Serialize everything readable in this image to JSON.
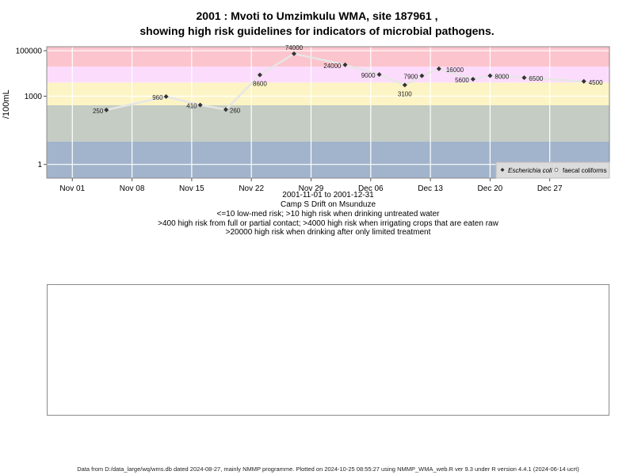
{
  "title_line1": "2001 : Mvoti to Umzimkulu WMA, site 187961 ,",
  "title_line2": "showing high risk guidelines for indicators of microbial pathogens.",
  "caption": {
    "date_range": "2001-11-01 to 2001-12-31",
    "site_name": "Camp S Drift on Msunduze",
    "rule1": "<=10 low-med risk; >10 high risk when drinking untreated water",
    "rule2": ">400 high risk from full or partial contact; >4000 high risk when irrigating crops that are eaten raw",
    "rule3": ">20000 high risk when drinking after only limited treatment"
  },
  "footer": "Data from D:/data_large/wq/wms.db dated 2024-08-27, mainly NMMP programme. Plotted on 2024-10-25 08:55:27 using NMMP_WMA_web.R ver 9.3 under R version 4.4.1 (2024-06-14 ucrt)",
  "chart_data": {
    "type": "line",
    "title": "2001 : Mvoti to Umzimkulu WMA, site 187961 , showing high risk guidelines for indicators of microbial pathogens.",
    "ylabel": "/100mL",
    "xlabel": "2001-11-01 to 2001-12-31",
    "y_scale": "log10",
    "ylim": [
      0.25,
      150000
    ],
    "y_ticks": [
      1,
      1000,
      100000
    ],
    "y_tick_labels": [
      "1",
      "1000",
      "100000"
    ],
    "x_ticks": [
      "2001-11-01",
      "2001-11-08",
      "2001-11-15",
      "2001-11-22",
      "2001-11-29",
      "2001-12-06",
      "2001-12-13",
      "2001-12-20",
      "2001-12-27"
    ],
    "x_tick_labels": [
      "Nov 01",
      "Nov 08",
      "Nov 15",
      "Nov 22",
      "Nov 29",
      "Dec 06",
      "Dec 13",
      "Dec 20",
      "Dec 27"
    ],
    "xlim": [
      "2001-10-29",
      "2002-01-03"
    ],
    "grid": true,
    "legend_position": "bottom-right",
    "risk_bands": [
      {
        "from": 0.25,
        "to": 10,
        "color": "#a2b4cc"
      },
      {
        "from": 10,
        "to": 400,
        "color": "#c4ccc4"
      },
      {
        "from": 400,
        "to": 4000,
        "color": "#fcf4c4"
      },
      {
        "from": 4000,
        "to": 20000,
        "color": "#fcdcfc"
      },
      {
        "from": 20000,
        "to": 150000,
        "color": "#fcc4cc"
      }
    ],
    "series": [
      {
        "name": "Escherichia coli",
        "marker": "diamond",
        "color": "#333333",
        "line_color": "#e6e6e6",
        "x": [
          "2001-11-05",
          "2001-11-12",
          "2001-11-16",
          "2001-11-19",
          "2001-11-23",
          "2001-11-27",
          "2001-12-03",
          "2001-12-07",
          "2001-12-10",
          "2001-12-12",
          "2001-12-14",
          "2001-12-18",
          "2001-12-20",
          "2001-12-24",
          "2001-12-31"
        ],
        "values": [
          250,
          960,
          410,
          260,
          8600,
          74000,
          24000,
          9000,
          3100,
          7900,
          16000,
          5600,
          8000,
          6500,
          4500
        ],
        "labels": [
          "250",
          "960",
          "410",
          "260",
          "8600",
          "74000",
          "24000",
          "9000",
          "3100",
          "7900",
          "16000",
          "5600",
          "8000",
          "6500",
          "4500"
        ]
      },
      {
        "name": "faecal coliforms",
        "marker": "circle",
        "color": "#ffffff",
        "x": [],
        "values": []
      }
    ]
  }
}
